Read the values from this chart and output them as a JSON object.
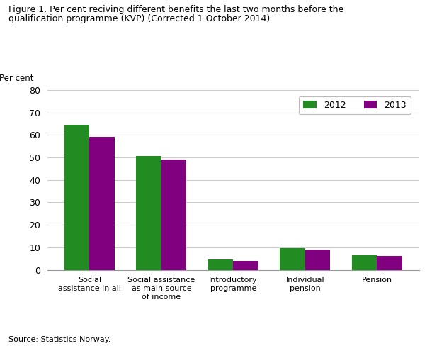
{
  "title_line1": "Figure 1. Per cent reciving different benefits the last two months before the",
  "title_line2": "qualification programme (KVP) (Corrected 1 October 2014)",
  "ylabel": "Per cent",
  "source": "Source: Statistics Norway.",
  "categories": [
    "Social\nassistance in all",
    "Social assistance\nas main source\nof income",
    "Introductory\nprogramme",
    "Individual\npension",
    "Pension"
  ],
  "values_2012": [
    64.5,
    50.5,
    4.5,
    9.8,
    6.5
  ],
  "values_2013": [
    59.0,
    49.0,
    4.0,
    9.0,
    6.3
  ],
  "color_2012": "#228B22",
  "color_2013": "#800080",
  "legend_labels": [
    "2012",
    "2013"
  ],
  "ylim": [
    0,
    80
  ],
  "yticks": [
    0,
    10,
    20,
    30,
    40,
    50,
    60,
    70,
    80
  ],
  "bar_width": 0.35,
  "background_color": "#ffffff",
  "grid_color": "#cccccc"
}
